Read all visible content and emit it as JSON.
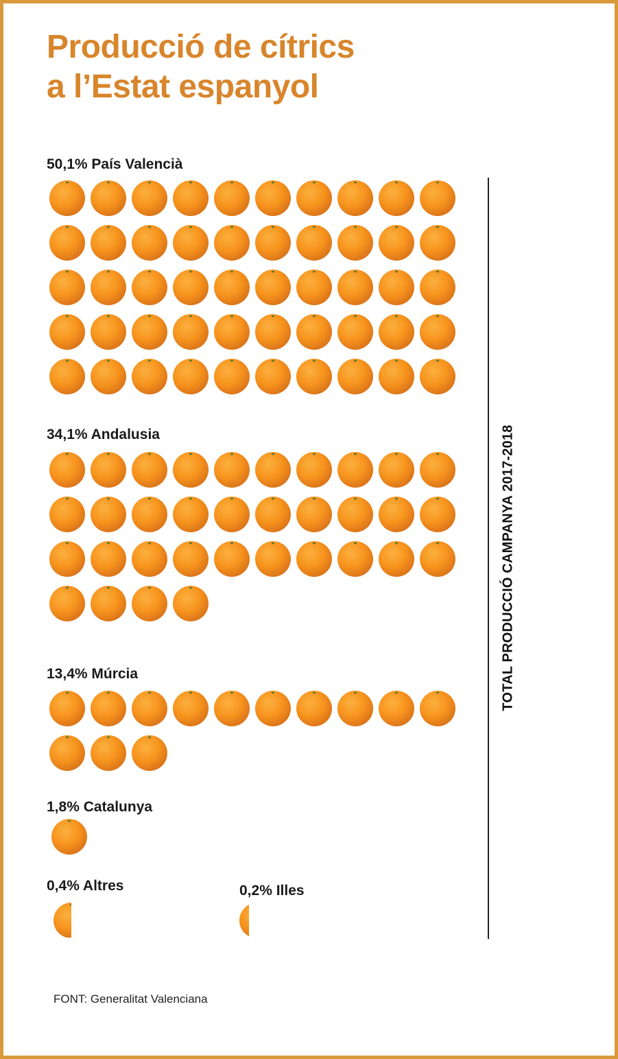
{
  "title": {
    "line1": "Producció de cítrics",
    "line2": "a l’Estat espanyol"
  },
  "side_label": "TOTAL PRODUCCIÓ CAMPANYA 2017-2018",
  "source": "FONT: Generalitat Valenciana",
  "colors": {
    "accent": "#d8852b",
    "border": "#d89a3a",
    "orange_light": "#fbb040",
    "orange_mid": "#f7941d",
    "orange_dark": "#d9731a",
    "stem": "#5a7a2a"
  },
  "icon": "orange-icon",
  "chart_data": {
    "type": "pictogram",
    "unit_note": "each orange ≈ 1%",
    "categories": [
      {
        "label": "50,1% País Valencià",
        "value": 50.1
      },
      {
        "label": "34,1% Andalusia",
        "value": 34.1
      },
      {
        "label": "13,4% Múrcia",
        "value": 13.4
      },
      {
        "label": "1,8% Catalunya",
        "value": 1.8
      },
      {
        "label": "0,4% Altres",
        "value": 0.4
      },
      {
        "label": "0,2% Illes",
        "value": 0.2
      }
    ]
  }
}
